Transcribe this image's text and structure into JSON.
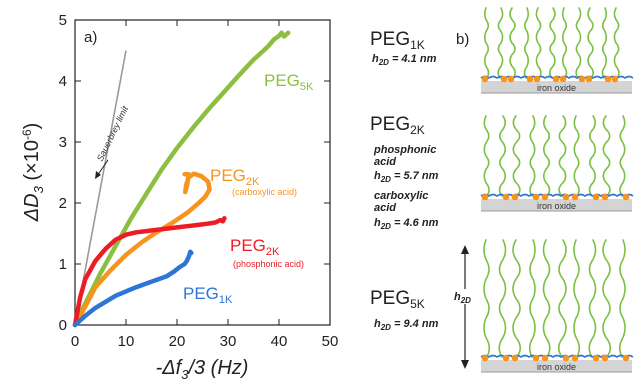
{
  "chart_data": {
    "type": "line",
    "panel_label": "a)",
    "xlabel_main": "-Δf",
    "xlabel_sub": "3",
    "xlabel_rest": "/3 (Hz)",
    "ylabel_main": "ΔD",
    "ylabel_sub": "3",
    "ylabel_rest": " (×10",
    "ylabel_exp": "-6",
    "ylabel_close": ")",
    "xlim": [
      0,
      50
    ],
    "ylim": [
      0,
      5
    ],
    "x_ticks": [
      "0",
      "10",
      "20",
      "30",
      "40",
      "50"
    ],
    "y_ticks": [
      "0",
      "1",
      "2",
      "3",
      "4",
      "5"
    ],
    "sauerbrey": {
      "label": "Sauerbrey limit",
      "points": [
        [
          0,
          0
        ],
        [
          10,
          4.5
        ]
      ],
      "color": "#9a9a9a"
    },
    "series": [
      {
        "key": "peg5k",
        "label": "PEG",
        "sub": "5K",
        "note": "",
        "color": "#8cbf3f",
        "points": [
          [
            0,
            0
          ],
          [
            2,
            0.35
          ],
          [
            5,
            0.85
          ],
          [
            8,
            1.3
          ],
          [
            11,
            1.75
          ],
          [
            14,
            2.15
          ],
          [
            17,
            2.55
          ],
          [
            20,
            2.9
          ],
          [
            23,
            3.22
          ],
          [
            26,
            3.52
          ],
          [
            29,
            3.8
          ],
          [
            32,
            4.08
          ],
          [
            35,
            4.35
          ],
          [
            37,
            4.5
          ],
          [
            38,
            4.58
          ],
          [
            39,
            4.68
          ],
          [
            40,
            4.74
          ],
          [
            40.5,
            4.79
          ],
          [
            41,
            4.73
          ],
          [
            41.8,
            4.79
          ]
        ]
      },
      {
        "key": "peg2k_carb",
        "label": "PEG",
        "sub": "2K",
        "note": "(carboxylic acid)",
        "color": "#f7941d",
        "points": [
          [
            0,
            0
          ],
          [
            2,
            0.3
          ],
          [
            4,
            0.62
          ],
          [
            7,
            0.9
          ],
          [
            10,
            1.15
          ],
          [
            13,
            1.35
          ],
          [
            16,
            1.52
          ],
          [
            19,
            1.67
          ],
          [
            22,
            1.84
          ],
          [
            24,
            1.98
          ],
          [
            25.5,
            2.1
          ],
          [
            26.4,
            2.22
          ],
          [
            26.1,
            2.35
          ],
          [
            24.8,
            2.44
          ],
          [
            23.3,
            2.48
          ],
          [
            22.3,
            2.42
          ],
          [
            21.8,
            2.3
          ],
          [
            21.6,
            2.18
          ],
          [
            22,
            2.3
          ],
          [
            22.3,
            2.47
          ],
          [
            21.5,
            2.47
          ]
        ]
      },
      {
        "key": "peg2k_phos",
        "label": "PEG",
        "sub": "2K",
        "note": "(phosphonic acid)",
        "color": "#ed1c24",
        "points": [
          [
            0,
            0
          ],
          [
            1,
            0.45
          ],
          [
            2,
            0.75
          ],
          [
            4,
            1.05
          ],
          [
            6,
            1.25
          ],
          [
            8,
            1.4
          ],
          [
            10,
            1.48
          ],
          [
            12,
            1.52
          ],
          [
            14,
            1.54
          ],
          [
            16,
            1.56
          ],
          [
            18,
            1.58
          ],
          [
            20,
            1.6
          ],
          [
            22,
            1.62
          ],
          [
            24,
            1.64
          ],
          [
            26,
            1.66
          ],
          [
            27.5,
            1.68
          ],
          [
            28.5,
            1.72
          ],
          [
            29,
            1.7
          ],
          [
            29.3,
            1.75
          ]
        ]
      },
      {
        "key": "peg1k",
        "label": "PEG",
        "sub": "1K",
        "note": "",
        "color": "#2e75d6",
        "points": [
          [
            0,
            0
          ],
          [
            2,
            0.15
          ],
          [
            4,
            0.28
          ],
          [
            6,
            0.38
          ],
          [
            8,
            0.48
          ],
          [
            10,
            0.55
          ],
          [
            12,
            0.62
          ],
          [
            14,
            0.68
          ],
          [
            16,
            0.74
          ],
          [
            18,
            0.8
          ],
          [
            19.5,
            0.88
          ],
          [
            20.5,
            0.95
          ],
          [
            21.5,
            1.0
          ],
          [
            22,
            1.06
          ],
          [
            22.4,
            1.14
          ],
          [
            22.6,
            1.2
          ],
          [
            22.8,
            1.18
          ]
        ]
      }
    ],
    "grid": false,
    "legend": "inline labels"
  },
  "schematic": {
    "panel_label": "b)",
    "oxide_label": "iron oxide",
    "h2d_label": "h",
    "h2d_sub": "2D",
    "rows": [
      {
        "key": "peg1k",
        "name": "PEG",
        "sub": "1K",
        "lines": [],
        "h": "h",
        "hsub": "2D",
        "hval": " = 4.1 nm"
      },
      {
        "key": "peg2k",
        "name": "PEG",
        "sub": "2K",
        "lines": [
          "phosphonic",
          "acid"
        ],
        "h": "h",
        "hsub": "2D",
        "hval": " = 5.7 nm",
        "lines2": [
          "carboxylic",
          "acid"
        ],
        "h2": "h",
        "hsub2": "2D",
        "hval2": " = 4.6 nm"
      },
      {
        "key": "peg5k",
        "name": "PEG",
        "sub": "5K",
        "lines": [],
        "h": "h",
        "hsub": "2D",
        "hval": " = 9.4 nm"
      }
    ],
    "colors": {
      "chain": "#7cc043",
      "anchor": "#f7941d",
      "interface": "#2e75d6",
      "substrate": "#d4d4d4"
    }
  }
}
